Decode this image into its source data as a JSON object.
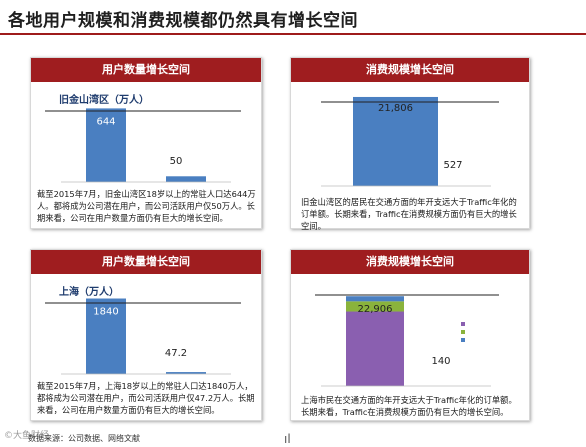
{
  "slide": {
    "title": "各地用户规模和消费规模都仍然具有增长空间",
    "footer_source": "数据来源：公司数据、网络文献",
    "watermark": "©大鱼财经",
    "corner_mark": "ıl"
  },
  "panels": [
    {
      "id": "sf-users",
      "header": "用户数量增长空间",
      "description": "截至2015年7月，旧金山湾区18岁以上的常驻人口达644万人。都将成为公司潜在用户，而公司活跃用户仅50万人。长期来看，公司在用户数量方面仍有巨大的增长空间。",
      "chart_data": {
        "type": "bar",
        "title": "旧金山湾区（万人）",
        "categories": [
          "",
          ""
        ],
        "values": [
          644,
          50
        ],
        "value_labels": [
          "644",
          "50"
        ],
        "ylim": [
          0,
          700
        ],
        "color": "#4a7fc1"
      }
    },
    {
      "id": "sf-spend",
      "header": "消费规模增长空间",
      "description": "旧金山湾区的居民在交通方面的年开支远大于Traffic年化的订单额。长期来看，Traffic在消费规模方面仍有巨大的增长空间。",
      "chart_data": {
        "type": "bar",
        "title": "",
        "categories": [
          "",
          ""
        ],
        "values": [
          21806,
          527
        ],
        "value_labels": [
          "21,806",
          "527"
        ],
        "ylim": [
          0,
          24000
        ],
        "color": "#4a7fc1"
      }
    },
    {
      "id": "sh-users",
      "header": "用户数量增长空间",
      "description": "截至2015年7月，上海18岁以上的常驻人口达1840万人，都将成为公司潜在用户，而公司活跃用户仅47.2万人。长期来看，公司在用户数量方面仍有巨大的增长空间。",
      "chart_data": {
        "type": "bar",
        "title": "上海（万人）",
        "categories": [
          "",
          ""
        ],
        "values": [
          1840,
          47.2
        ],
        "value_labels": [
          "1840",
          "47.2"
        ],
        "ylim": [
          0,
          1950
        ],
        "color": "#4a7fc1"
      }
    },
    {
      "id": "sh-spend",
      "header": "消费规模增长空间",
      "description": "上海市民在交通方面的年开支远大于Traffic年化的订单额。长期来看，Traffic在消费规模方面仍有巨大的增长空间。",
      "chart_data": {
        "type": "stacked-bar",
        "title": "",
        "bar1_total": 22906,
        "bar1_label": "22,906",
        "bar1_segments": [
          {
            "value": 19000,
            "color": "#8a5fb0"
          },
          {
            "value": 2600,
            "color": "#8ab33c"
          },
          {
            "value": 1306,
            "color": "#4a7fc1"
          }
        ],
        "bar2_value": 140,
        "bar2_label": "140",
        "ylim": [
          0,
          25000
        ]
      }
    }
  ]
}
